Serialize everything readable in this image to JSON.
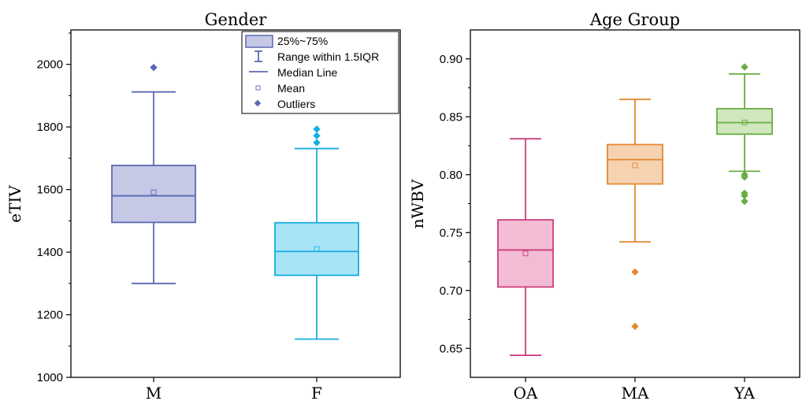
{
  "chart_data": [
    {
      "type": "box",
      "title": "Gender",
      "xlabel": "",
      "ylabel": "eTIV",
      "ylim": [
        1000,
        2110
      ],
      "yticks": [
        "1000",
        "1200",
        "1400",
        "1600",
        "1800",
        "2000"
      ],
      "categories": [
        "M",
        "F"
      ],
      "colors": {
        "M": {
          "stroke": "#5b69b2",
          "fill": "#c5c9e6"
        },
        "F": {
          "stroke": "#16aee0",
          "fill": "#a8e4f6"
        }
      },
      "boxes": [
        {
          "category": "M",
          "whisker_low": 1300,
          "q1": 1495,
          "median": 1580,
          "q3": 1677,
          "whisker_high": 1912,
          "mean": 1591,
          "outliers": [
            1990
          ]
        },
        {
          "category": "F",
          "whisker_low": 1122,
          "q1": 1326,
          "median": 1402,
          "q3": 1494,
          "whisker_high": 1731,
          "mean": 1410,
          "outliers": [
            1750,
            1772,
            1793
          ]
        }
      ],
      "legend": {
        "placement": "top-right",
        "entries": [
          "25%~75%",
          "Range within 1.5IQR",
          "Median Line",
          "Mean",
          "Outliers"
        ]
      }
    },
    {
      "type": "box",
      "title": "Age Group",
      "xlabel": "",
      "ylabel": "nWBV",
      "ylim": [
        0.625,
        0.925
      ],
      "yticks": [
        "0.65",
        "0.70",
        "0.75",
        "0.80",
        "0.85",
        "0.90"
      ],
      "categories": [
        "OA",
        "MA",
        "YA"
      ],
      "colors": {
        "OA": {
          "stroke": "#cc3f80",
          "fill": "#f2bcd4"
        },
        "MA": {
          "stroke": "#e08a30",
          "fill": "#f6d2b1"
        },
        "YA": {
          "stroke": "#6aac42",
          "fill": "#cfe6bf"
        }
      },
      "boxes": [
        {
          "category": "OA",
          "whisker_low": 0.644,
          "q1": 0.703,
          "median": 0.735,
          "q3": 0.761,
          "whisker_high": 0.831,
          "mean": 0.732,
          "outliers": []
        },
        {
          "category": "MA",
          "whisker_low": 0.742,
          "q1": 0.792,
          "median": 0.813,
          "q3": 0.826,
          "whisker_high": 0.865,
          "mean": 0.808,
          "outliers": [
            0.716,
            0.669
          ]
        },
        {
          "category": "YA",
          "whisker_low": 0.803,
          "q1": 0.835,
          "median": 0.845,
          "q3": 0.857,
          "whisker_high": 0.887,
          "mean": 0.845,
          "outliers": [
            0.893,
            0.8,
            0.798,
            0.784,
            0.782,
            0.777
          ]
        }
      ]
    }
  ]
}
